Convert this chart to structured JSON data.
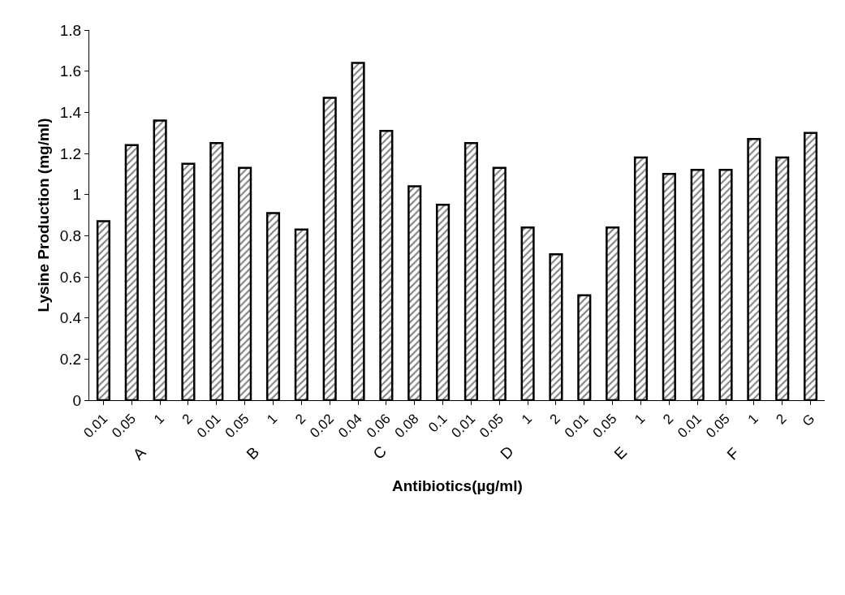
{
  "chart_data": {
    "type": "bar",
    "xlabel": "Antibiotics(µg/ml)",
    "ylabel": "Lysine Production (mg/ml)",
    "categories": [
      "0.01",
      "0.05",
      "1",
      "2",
      "0.01",
      "0.05",
      "1",
      "2",
      "0.02",
      "0.04",
      "0.06",
      "0.08",
      "0.1",
      "0.01",
      "0.05",
      "1",
      "2",
      "0.01",
      "0.05",
      "1",
      "2",
      "0.01",
      "0.05",
      "1",
      "2",
      "G"
    ],
    "values": [
      0.87,
      1.24,
      1.36,
      1.15,
      1.25,
      1.13,
      0.91,
      0.83,
      1.47,
      1.64,
      1.31,
      1.04,
      0.95,
      1.25,
      1.13,
      0.84,
      0.71,
      0.51,
      0.84,
      1.18,
      1.1,
      1.12,
      1.12,
      1.27,
      1.18,
      1.3
    ],
    "color": "#000000",
    "ylim": [
      0,
      1.8
    ],
    "yticks": [
      0,
      0.2,
      0.4,
      0.6,
      0.8,
      1,
      1.2,
      1.4,
      1.6,
      1.8
    ],
    "annotations": [
      "A",
      "B",
      "C",
      "D",
      "E",
      "F"
    ],
    "legend": false
  }
}
